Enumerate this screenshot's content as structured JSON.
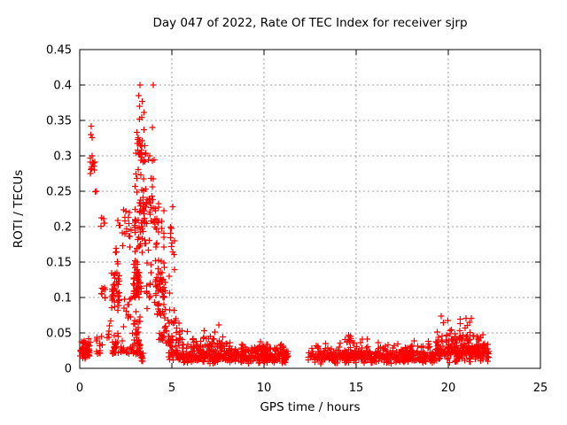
{
  "page": {
    "background": "#ffffff"
  },
  "chart_data": {
    "type": "scatter",
    "title": "Day 047 of 2022, Rate Of TEC Index for receiver sjrp",
    "xlabel": "GPS time / hours",
    "ylabel": "ROTI / TECUs",
    "xlim": [
      0,
      25
    ],
    "ylim": [
      0,
      0.45
    ],
    "xtick_values": [
      0,
      5,
      10,
      15,
      20,
      25
    ],
    "xtick_labels": [
      "0",
      "5",
      "10",
      "15",
      "20",
      "25"
    ],
    "ytick_values": [
      0,
      0.05,
      0.1,
      0.15,
      0.2,
      0.25,
      0.3,
      0.35,
      0.4,
      0.45
    ],
    "ytick_labels": [
      "0",
      "0.05",
      "0.1",
      "0.15",
      "0.2",
      "0.25",
      "0.3",
      "0.35",
      "0.4",
      "0.45"
    ],
    "grid": {
      "show": true,
      "color": "#9f9f9f",
      "style": "dotted"
    },
    "frame_color": "#000000",
    "legend": "none",
    "marker": {
      "shape": "plus",
      "color": "#ff0000",
      "size": 7
    },
    "series": [
      {
        "name": "ROTI",
        "description": "Rate of TEC index vs GPS time; storm activity hours 0-5.5 (peaks 0.40 near hours 3.3 and 4.0), quiet band 0.01-0.05 hours 5-11.3, data gap 11.3-12.3, quiet band 12.3-22.2 with mild enhancement to ~0.074 near hours 19.5-21.5",
        "points": [
          [
            3.28,
            0.4
          ],
          [
            3.98,
            0.4
          ],
          [
            3.95,
            0.34
          ],
          [
            2.5,
            0.222
          ],
          [
            1.32,
            0.205
          ],
          [
            7.55,
            0.061
          ],
          [
            5.85,
            0.052
          ],
          [
            14.6,
            0.047
          ],
          [
            15.6,
            0.041
          ],
          [
            19.62,
            0.074
          ]
        ],
        "clusters": [
          {
            "x": [
              0.02,
              0.55
            ],
            "y": [
              0.012,
              0.035
            ],
            "n": 55,
            "skew": "mid"
          },
          {
            "x": [
              0.1,
              0.62
            ],
            "y": [
              0.035,
              0.058
            ],
            "n": 8,
            "skew": "low"
          },
          {
            "x": [
              0.55,
              0.85
            ],
            "y": [
              0.27,
              0.315
            ],
            "n": 13,
            "skew": "mid"
          },
          {
            "x": [
              0.55,
              0.78
            ],
            "y": [
              0.325,
              0.345
            ],
            "n": 3,
            "skew": "none"
          },
          {
            "x": [
              0.8,
              1.0
            ],
            "y": [
              0.24,
              0.26
            ],
            "n": 2,
            "skew": "none"
          },
          {
            "x": [
              0.85,
              1.25
            ],
            "y": [
              0.02,
              0.05
            ],
            "n": 14,
            "skew": "low"
          },
          {
            "x": [
              1.0,
              1.45
            ],
            "y": [
              0.095,
              0.115
            ],
            "n": 8,
            "skew": "none"
          },
          {
            "x": [
              1.15,
              1.45
            ],
            "y": [
              0.195,
              0.215
            ],
            "n": 4,
            "skew": "none"
          },
          {
            "x": [
              1.5,
              1.7
            ],
            "y": [
              0.04,
              0.07
            ],
            "n": 6,
            "skew": "none"
          },
          {
            "x": [
              1.7,
              2.15
            ],
            "y": [
              0.075,
              0.14
            ],
            "n": 40,
            "skew": "mid"
          },
          {
            "x": [
              1.75,
              2.1
            ],
            "y": [
              0.02,
              0.075
            ],
            "n": 22,
            "skew": "low"
          },
          {
            "x": [
              1.85,
              2.1
            ],
            "y": [
              0.145,
              0.175
            ],
            "n": 5,
            "skew": "none"
          },
          {
            "x": [
              2.0,
              2.2
            ],
            "y": [
              0.19,
              0.215
            ],
            "n": 3,
            "skew": "none"
          },
          {
            "x": [
              2.3,
              2.8
            ],
            "y": [
              0.16,
              0.23
            ],
            "n": 16,
            "skew": "mid"
          },
          {
            "x": [
              2.35,
              2.8
            ],
            "y": [
              0.05,
              0.105
            ],
            "n": 12,
            "skew": "mid"
          },
          {
            "x": [
              2.2,
              2.85
            ],
            "y": [
              0.02,
              0.05
            ],
            "n": 18,
            "skew": "low"
          },
          {
            "x": [
              2.85,
              3.3
            ],
            "y": [
              0.02,
              0.09
            ],
            "n": 45,
            "skew": "low"
          },
          {
            "x": [
              2.9,
              3.35
            ],
            "y": [
              0.09,
              0.16
            ],
            "n": 50,
            "skew": "mid"
          },
          {
            "x": [
              2.95,
              3.6
            ],
            "y": [
              0.16,
              0.26
            ],
            "n": 55,
            "skew": "mid"
          },
          {
            "x": [
              3.05,
              3.6
            ],
            "y": [
              0.26,
              0.345
            ],
            "n": 32,
            "skew": "mid"
          },
          {
            "x": [
              3.2,
              3.5
            ],
            "y": [
              0.35,
              0.39
            ],
            "n": 6,
            "skew": "none"
          },
          {
            "x": [
              3.3,
              3.45
            ],
            "y": [
              0.01,
              0.022
            ],
            "n": 10,
            "skew": "none"
          },
          {
            "x": [
              3.6,
              4.05
            ],
            "y": [
              0.15,
              0.31
            ],
            "n": 25,
            "skew": "mid"
          },
          {
            "x": [
              3.6,
              4.0
            ],
            "y": [
              0.08,
              0.15
            ],
            "n": 12,
            "skew": "none"
          },
          {
            "x": [
              4.05,
              4.65
            ],
            "y": [
              0.05,
              0.16
            ],
            "n": 60,
            "skew": "mid"
          },
          {
            "x": [
              4.05,
              4.6
            ],
            "y": [
              0.16,
              0.235
            ],
            "n": 22,
            "skew": "mid"
          },
          {
            "x": [
              4.3,
              4.55
            ],
            "y": [
              0.035,
              0.05
            ],
            "n": 10,
            "skew": "none"
          },
          {
            "x": [
              4.65,
              5.0
            ],
            "y": [
              0.03,
              0.09
            ],
            "n": 20,
            "skew": "low"
          },
          {
            "x": [
              4.85,
              5.15
            ],
            "y": [
              0.1,
              0.235
            ],
            "n": 13,
            "skew": "mid"
          },
          {
            "x": [
              5.0,
              5.6
            ],
            "y": [
              0.04,
              0.1
            ],
            "n": 16,
            "skew": "low"
          },
          {
            "x": [
              4.8,
              11.3
            ],
            "y": [
              0.006,
              0.03
            ],
            "n": 420,
            "skew": "mid"
          },
          {
            "x": [
              5.0,
              8.2
            ],
            "y": [
              0.03,
              0.047
            ],
            "n": 55,
            "skew": "low"
          },
          {
            "x": [
              6.7,
              7.4
            ],
            "y": [
              0.04,
              0.058
            ],
            "n": 10,
            "skew": "low"
          },
          {
            "x": [
              8.2,
              11.25
            ],
            "y": [
              0.028,
              0.04
            ],
            "n": 25,
            "skew": "low"
          },
          {
            "x": [
              12.3,
              19.3
            ],
            "y": [
              0.006,
              0.028
            ],
            "n": 400,
            "skew": "mid"
          },
          {
            "x": [
              12.5,
              19.0
            ],
            "y": [
              0.028,
              0.042
            ],
            "n": 45,
            "skew": "low"
          },
          {
            "x": [
              13.8,
              15.0
            ],
            "y": [
              0.035,
              0.048
            ],
            "n": 8,
            "skew": "low"
          },
          {
            "x": [
              19.3,
              22.2
            ],
            "y": [
              0.008,
              0.04
            ],
            "n": 230,
            "skew": "mid"
          },
          {
            "x": [
              19.4,
              22.0
            ],
            "y": [
              0.04,
              0.06
            ],
            "n": 40,
            "skew": "low"
          },
          {
            "x": [
              19.5,
              21.6
            ],
            "y": [
              0.06,
              0.072
            ],
            "n": 8,
            "skew": "none"
          }
        ]
      }
    ]
  }
}
